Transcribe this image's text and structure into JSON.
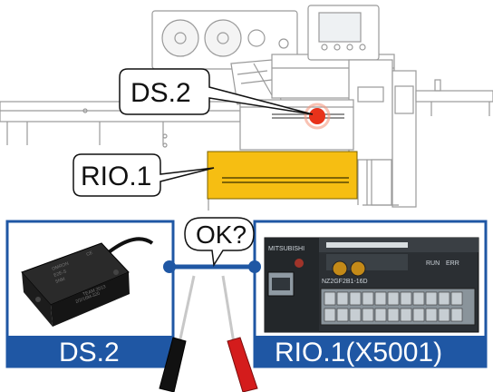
{
  "machine": {
    "sensor_callout": "DS.2",
    "module_callout": "RIO.1"
  },
  "panels": {
    "left_label": "DS.2",
    "right_label": "RIO.1(X5001)"
  },
  "probe_bubble": "OK?",
  "sensor_photo": {
    "printed_text": [
      "OMRON",
      "E2E-S",
      "5NM",
      "CE",
      "TEAM 2013",
      "2/2/16M-320"
    ]
  },
  "module_photo": {
    "printed_text": [
      "MITSUBISHI",
      "NZ2GF2B1-16D",
      "RUN",
      "ERR"
    ]
  },
  "colors": {
    "panel_blue": "#1f57a4",
    "module_yellow": "#f6be12",
    "indicator_red": "#e8321a",
    "probe_red": "#d41c1c",
    "probe_black": "#111111"
  }
}
